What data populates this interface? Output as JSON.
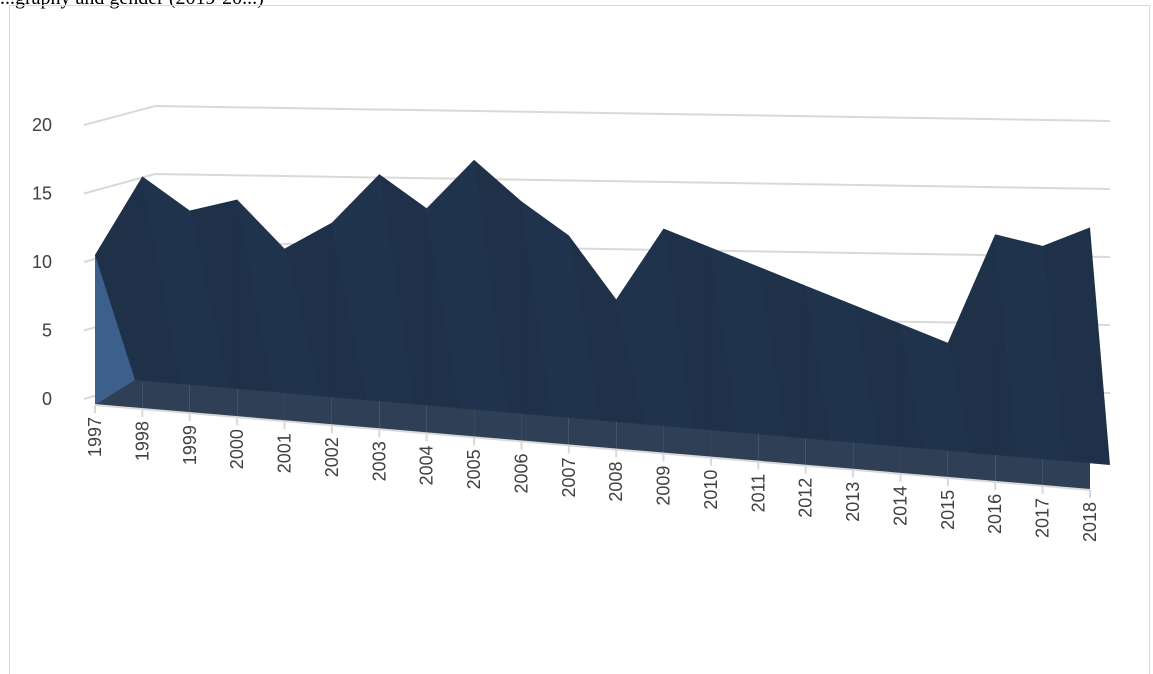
{
  "caption": "...graphy and gender (2019-20...)",
  "chart_data": {
    "type": "area",
    "title": "",
    "xlabel": "",
    "ylabel": "",
    "ylim": [
      0,
      20
    ],
    "y_ticks": [
      0,
      5,
      10,
      15,
      20
    ],
    "grid": true,
    "legend": "none",
    "categories": [
      "1997",
      "1998",
      "1999",
      "2000",
      "2001",
      "2002",
      "2003",
      "2004",
      "2005",
      "2006",
      "2007",
      "2008",
      "2009",
      "2010",
      "2011",
      "2012",
      "2013",
      "2014",
      "2015",
      "2016",
      "2017",
      "2018"
    ],
    "series": [
      {
        "values": [
          10,
          15.5,
          13.5,
          14.5,
          11.5,
          13.5,
          17,
          15,
          18.5,
          16,
          14,
          10,
          15,
          14,
          13,
          12,
          11,
          10,
          9,
          16.5,
          16,
          17.5
        ]
      }
    ],
    "colors": {
      "fill_front": "#1f3149",
      "fill_side": "#2e4a6e",
      "fill_light": "#3c5f8c",
      "grid": "#d9d9d9"
    }
  }
}
